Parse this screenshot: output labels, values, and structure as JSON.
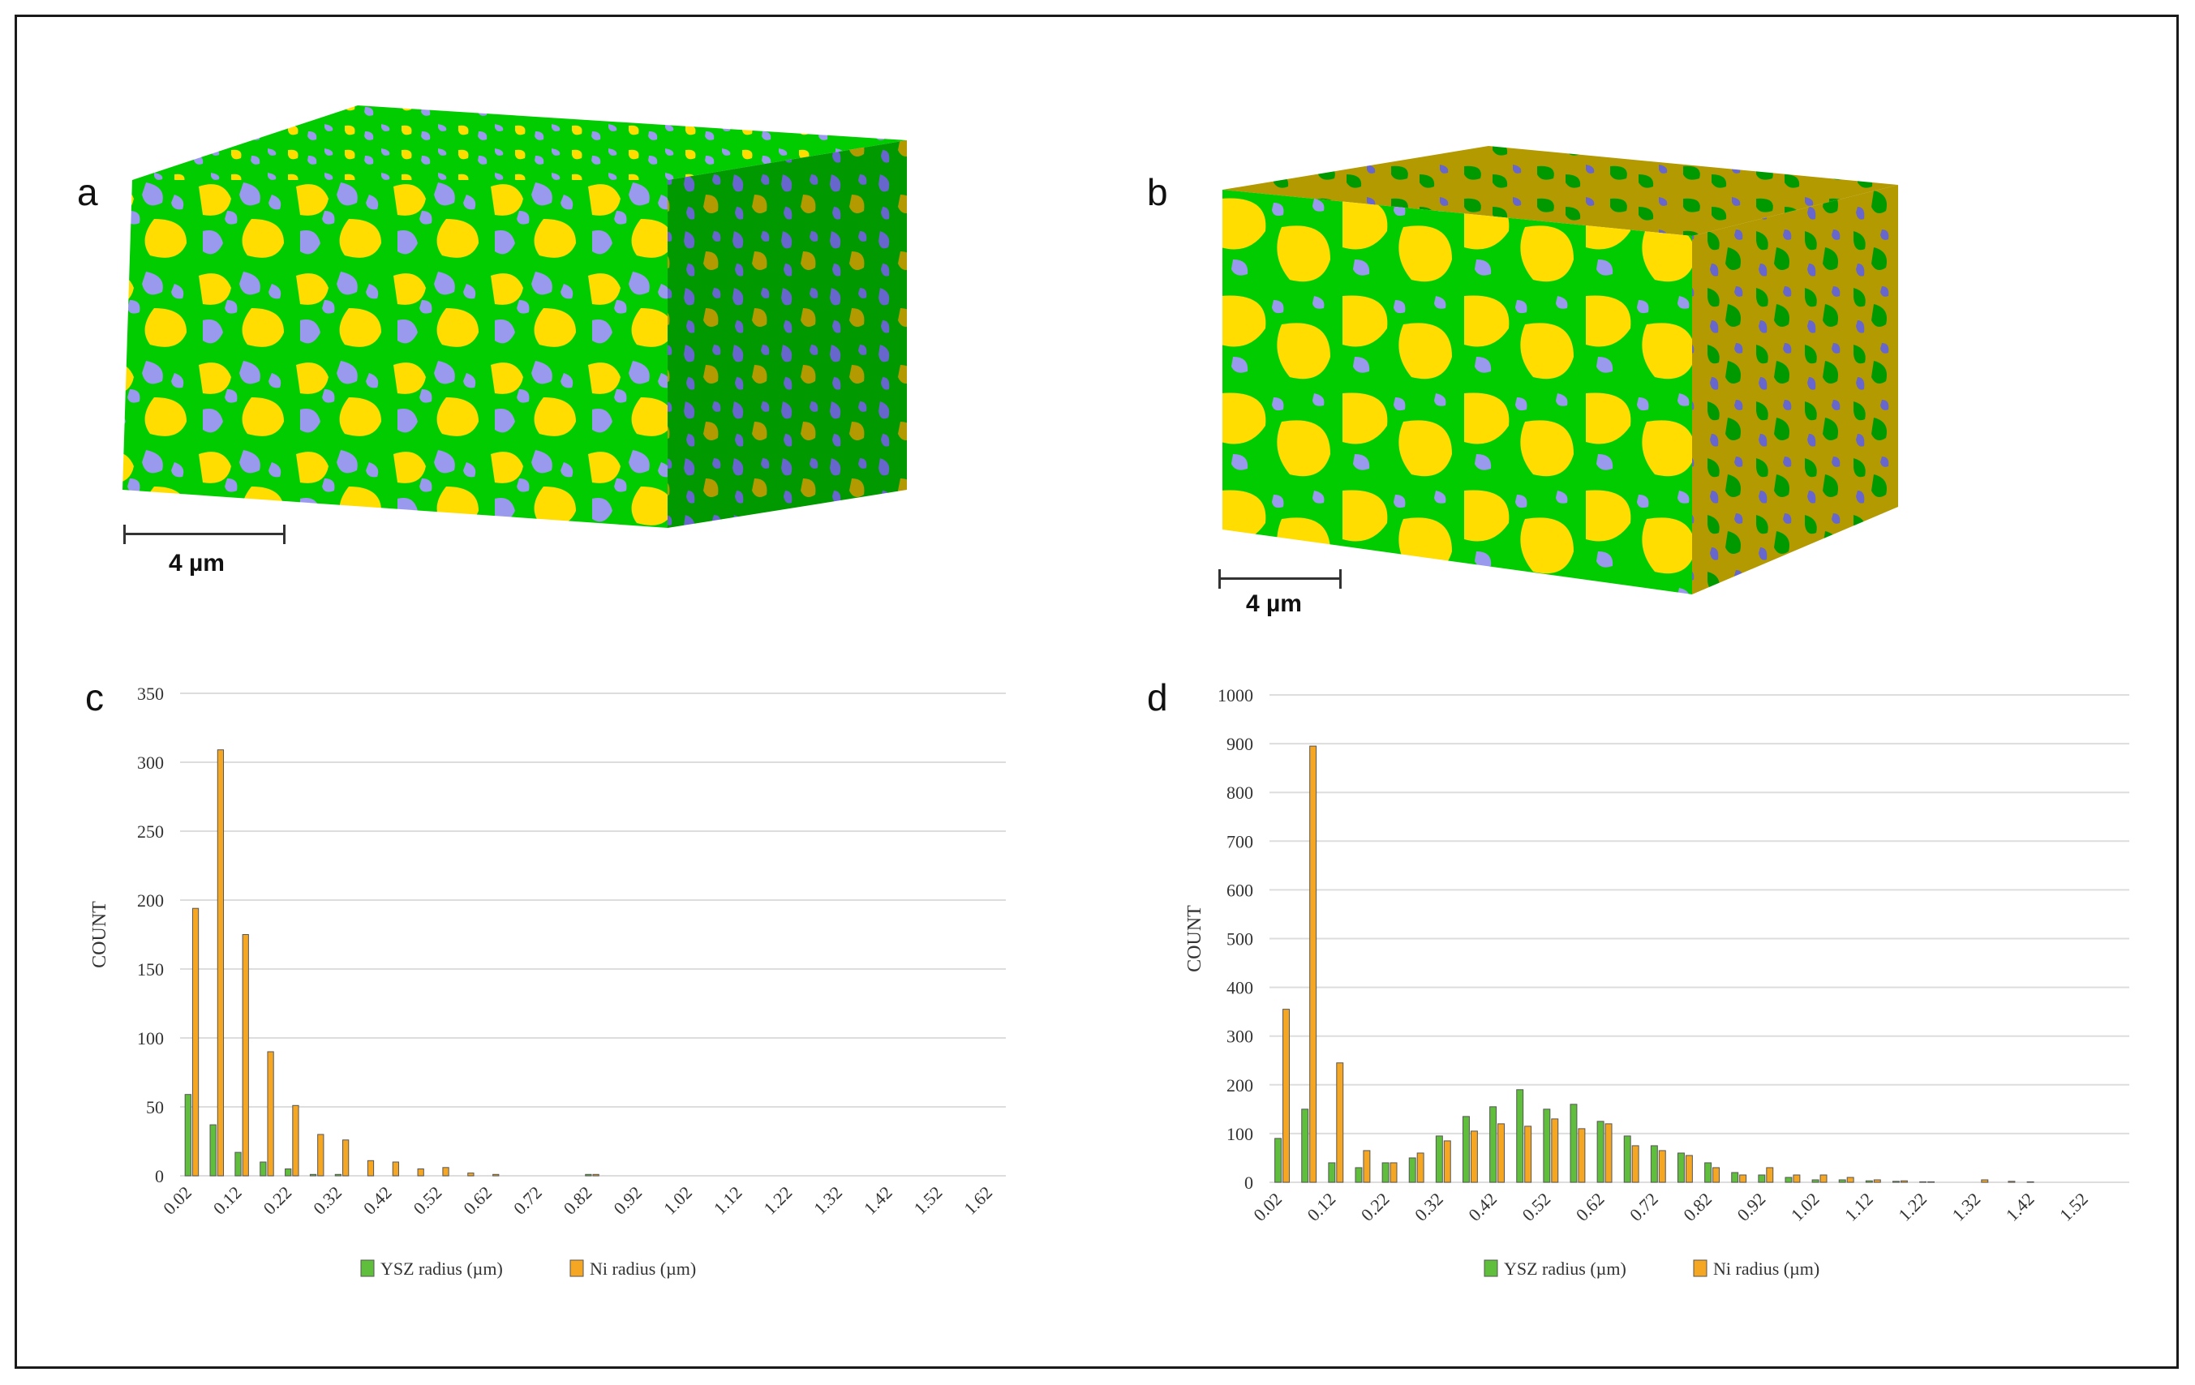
{
  "panels": {
    "a": {
      "label": "a",
      "scale_text": "4 µm"
    },
    "b": {
      "label": "b",
      "scale_text": "4 µm"
    },
    "c": {
      "label": "c"
    },
    "d": {
      "label": "d"
    }
  },
  "colors": {
    "ysz": "#00cc00",
    "ysz_dark": "#009900",
    "ni": "#ffdd00",
    "ni_dark": "#b39a00",
    "pore": "#9999ee",
    "pore_dark": "#6666cc",
    "bar_ysz": "#5fbe3b",
    "bar_ni": "#f5a623",
    "grid": "#dddddd"
  },
  "chart_data": [
    {
      "type": "bar",
      "panel": "c",
      "ylabel": "COUNT",
      "ylim": [
        0,
        350
      ],
      "yticks": [
        "0",
        "50",
        "100",
        "150",
        "200",
        "250",
        "300",
        "350"
      ],
      "categories": [
        "0.02",
        "0.07",
        "0.12",
        "0.17",
        "0.22",
        "0.27",
        "0.32",
        "0.37",
        "0.42",
        "0.47",
        "0.52",
        "0.57",
        "0.62",
        "0.67",
        "0.72",
        "0.77",
        "0.82",
        "0.87",
        "0.92",
        "0.97",
        "1.02",
        "1.07",
        "1.12",
        "1.17",
        "1.22",
        "1.27",
        "1.32",
        "1.37",
        "1.42",
        "1.47",
        "1.52",
        "1.57",
        "1.62"
      ],
      "tick_labels": [
        "0.02",
        "0.12",
        "0.22",
        "0.32",
        "0.42",
        "0.52",
        "0.62",
        "0.72",
        "0.82",
        "0.92",
        "1.02",
        "1.12",
        "1.22",
        "1.32",
        "1.42",
        "1.52",
        "1.62"
      ],
      "series": [
        {
          "name": "YSZ radius (µm)",
          "values": [
            59,
            37,
            17,
            10,
            5,
            1,
            1,
            0,
            0,
            0,
            0,
            0,
            0,
            0,
            0,
            0,
            1,
            0,
            0,
            0,
            0,
            0,
            0,
            0,
            0,
            0,
            0,
            0,
            0,
            0,
            0,
            0,
            0
          ]
        },
        {
          "name": "Ni radius (µm)",
          "values": [
            194,
            309,
            175,
            90,
            51,
            30,
            26,
            11,
            10,
            5,
            6,
            2,
            1,
            0,
            0,
            0,
            1,
            0,
            0,
            0,
            0,
            0,
            0,
            0,
            0,
            0,
            0,
            0,
            0,
            0,
            0,
            0,
            0
          ]
        }
      ],
      "legend": [
        "YSZ radius (µm)",
        "Ni radius (µm)"
      ],
      "legend_position": "bottom"
    },
    {
      "type": "bar",
      "panel": "d",
      "ylabel": "COUNT",
      "ylim": [
        0,
        1000
      ],
      "yticks": [
        "0",
        "100",
        "200",
        "300",
        "400",
        "500",
        "600",
        "700",
        "800",
        "900",
        "1000"
      ],
      "categories": [
        "0.02",
        "0.07",
        "0.12",
        "0.17",
        "0.22",
        "0.27",
        "0.32",
        "0.37",
        "0.42",
        "0.47",
        "0.52",
        "0.57",
        "0.62",
        "0.67",
        "0.72",
        "0.77",
        "0.82",
        "0.87",
        "0.92",
        "0.97",
        "1.02",
        "1.07",
        "1.12",
        "1.17",
        "1.22",
        "1.27",
        "1.32",
        "1.37",
        "1.42",
        "1.47",
        "1.52",
        "1.57"
      ],
      "tick_labels": [
        "0.02",
        "0.12",
        "0.22",
        "0.32",
        "0.42",
        "0.52",
        "0.62",
        "0.72",
        "0.82",
        "0.92",
        "1.02",
        "1.12",
        "1.22",
        "1.32",
        "1.42",
        "1.52"
      ],
      "series": [
        {
          "name": "YSZ radius (µm)",
          "values": [
            90,
            150,
            40,
            30,
            40,
            50,
            95,
            135,
            155,
            190,
            150,
            160,
            125,
            95,
            75,
            60,
            40,
            20,
            15,
            10,
            5,
            5,
            3,
            2,
            1,
            0,
            0,
            0,
            1,
            0,
            0,
            0
          ]
        },
        {
          "name": "Ni radius (µm)",
          "values": [
            355,
            895,
            245,
            65,
            40,
            60,
            85,
            105,
            120,
            115,
            130,
            110,
            120,
            75,
            65,
            55,
            30,
            15,
            30,
            15,
            15,
            10,
            5,
            3,
            1,
            0,
            5,
            2,
            0,
            0,
            0,
            0
          ]
        }
      ],
      "legend": [
        "YSZ radius (µm)",
        "Ni radius (µm)"
      ],
      "legend_position": "bottom"
    }
  ]
}
